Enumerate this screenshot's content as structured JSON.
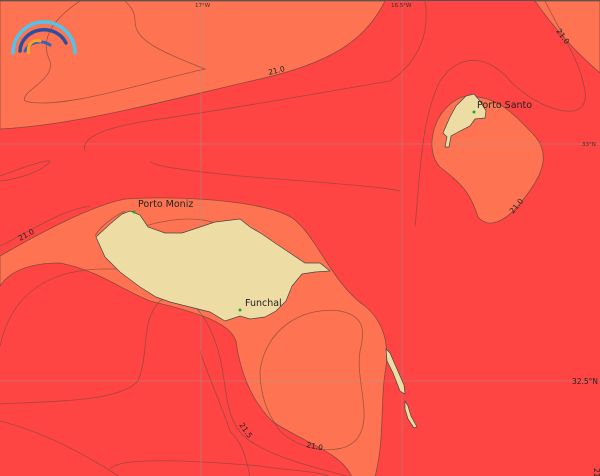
{
  "map": {
    "colors": {
      "sea_warm": "#ff4444",
      "sea_cool": "#fe7453",
      "land": "#eedca5",
      "grid": "#999999",
      "place_marker": "#22aa22"
    },
    "places": [
      {
        "name": "Porto Moniz"
      },
      {
        "name": "Funchal"
      },
      {
        "name": "Porto Santo"
      }
    ],
    "contour_labels": [
      "21.0",
      "21.0",
      "21.0",
      "21.0",
      "21.5",
      "21.0",
      "21.0"
    ],
    "grid_labels": {
      "lon": [
        "17°W",
        "16.5°W"
      ],
      "lat": [
        "33°N",
        "32.5°N"
      ]
    },
    "logo_icon": "rainbow-arcs-logo"
  }
}
